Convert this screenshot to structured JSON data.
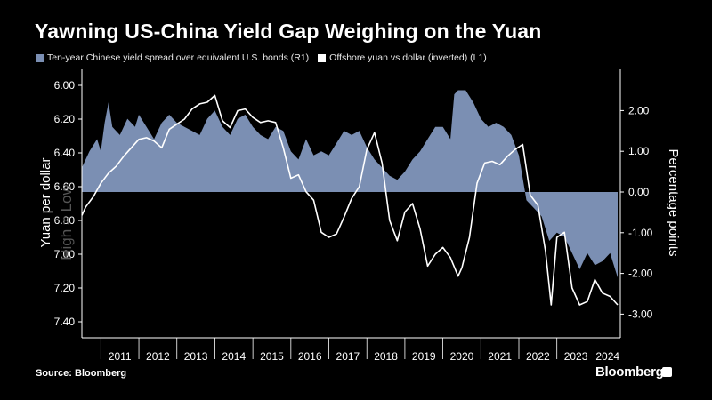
{
  "header": {
    "title": "Yawning US-China Yield Gap Weighing on the Yuan"
  },
  "legend": [
    {
      "label": "Ten-year Chinese yield spread over equivalent U.S. bonds (R1)",
      "color": "#7b8fb3"
    },
    {
      "label": "Offshore yuan vs dollar (inverted) (L1)",
      "color": "#ffffff"
    }
  ],
  "footer": {
    "source": "Source: Bloomberg",
    "brand": "Bloomberg"
  },
  "watermark": "High = Low",
  "chart_data": {
    "type": "area",
    "x_tick_labels": [
      "2011",
      "2012",
      "2013",
      "2014",
      "2015",
      "2016",
      "2017",
      "2018",
      "2019",
      "2020",
      "2021",
      "2022",
      "2023",
      "2024"
    ],
    "left_axis": {
      "label": "Yuan per dollar",
      "ylim": [
        7.4,
        6.0
      ],
      "inverted": true,
      "tick_labels": [
        "6.00",
        "6.20",
        "6.40",
        "6.60",
        "6.80",
        "7.00",
        "7.20",
        "7.40"
      ]
    },
    "right_axis": {
      "label": "Percentage points",
      "ylim": [
        -3.0,
        2.5
      ],
      "tick_labels": [
        "2.00",
        "1.00",
        "0.00",
        "-1.00",
        "-2.00",
        "-3.00"
      ]
    },
    "series": [
      {
        "name": "Ten-year Chinese yield spread over equivalent U.S. bonds (R1)",
        "axis": "right",
        "color": "#7b8fb3",
        "x": [
          2010.5,
          2010.7,
          2010.9,
          2011.0,
          2011.1,
          2011.2,
          2011.3,
          2011.5,
          2011.7,
          2011.9,
          2012.0,
          2012.2,
          2012.4,
          2012.6,
          2012.8,
          2013.0,
          2013.2,
          2013.4,
          2013.6,
          2013.8,
          2014.0,
          2014.2,
          2014.4,
          2014.6,
          2014.8,
          2015.0,
          2015.2,
          2015.4,
          2015.6,
          2015.8,
          2016.0,
          2016.2,
          2016.4,
          2016.6,
          2016.8,
          2017.0,
          2017.2,
          2017.4,
          2017.6,
          2017.8,
          2018.0,
          2018.2,
          2018.4,
          2018.6,
          2018.8,
          2019.0,
          2019.2,
          2019.4,
          2019.6,
          2019.8,
          2020.0,
          2020.2,
          2020.3,
          2020.4,
          2020.6,
          2020.8,
          2021.0,
          2021.2,
          2021.4,
          2021.6,
          2021.8,
          2022.0,
          2022.2,
          2022.4,
          2022.6,
          2022.8,
          2023.0,
          2023.2,
          2023.4,
          2023.6,
          2023.8,
          2024.0,
          2024.2,
          2024.4,
          2024.6
        ],
        "y": [
          0.6,
          1.0,
          1.3,
          1.0,
          1.7,
          2.2,
          1.6,
          1.4,
          1.8,
          1.6,
          1.9,
          1.6,
          1.3,
          1.7,
          1.9,
          1.7,
          1.6,
          1.5,
          1.4,
          1.8,
          2.0,
          1.6,
          1.4,
          1.8,
          1.9,
          1.6,
          1.4,
          1.3,
          1.6,
          1.5,
          1.0,
          0.8,
          1.3,
          0.9,
          1.0,
          0.9,
          1.2,
          1.5,
          1.4,
          1.5,
          1.1,
          0.8,
          0.6,
          0.4,
          0.3,
          0.5,
          0.8,
          1.0,
          1.3,
          1.6,
          1.6,
          1.3,
          2.4,
          2.5,
          2.5,
          2.2,
          1.8,
          1.6,
          1.7,
          1.6,
          1.4,
          0.9,
          -0.2,
          -0.4,
          -0.6,
          -1.2,
          -1.0,
          -1.1,
          -1.5,
          -1.9,
          -1.5,
          -1.8,
          -1.7,
          -1.5,
          -2.1
        ]
      },
      {
        "name": "Offshore yuan vs dollar (inverted) (L1)",
        "axis": "left",
        "color": "#ffffff",
        "x": [
          2010.5,
          2010.6,
          2010.8,
          2011.0,
          2011.2,
          2011.4,
          2011.6,
          2011.8,
          2012.0,
          2012.2,
          2012.4,
          2012.6,
          2012.8,
          2013.0,
          2013.2,
          2013.4,
          2013.6,
          2013.8,
          2014.0,
          2014.2,
          2014.4,
          2014.6,
          2014.8,
          2015.0,
          2015.2,
          2015.4,
          2015.6,
          2015.8,
          2016.0,
          2016.2,
          2016.4,
          2016.6,
          2016.8,
          2017.0,
          2017.2,
          2017.4,
          2017.6,
          2017.8,
          2018.0,
          2018.2,
          2018.4,
          2018.6,
          2018.8,
          2019.0,
          2019.2,
          2019.4,
          2019.6,
          2019.8,
          2020.0,
          2020.2,
          2020.4,
          2020.5,
          2020.7,
          2020.9,
          2021.1,
          2021.3,
          2021.5,
          2021.7,
          2021.9,
          2022.1,
          2022.3,
          2022.5,
          2022.7,
          2022.85,
          2023.0,
          2023.2,
          2023.4,
          2023.6,
          2023.8,
          2024.0,
          2024.2,
          2024.4,
          2024.6
        ],
        "y": [
          6.77,
          6.72,
          6.66,
          6.58,
          6.52,
          6.48,
          6.42,
          6.37,
          6.32,
          6.31,
          6.33,
          6.37,
          6.26,
          6.23,
          6.2,
          6.14,
          6.11,
          6.1,
          6.06,
          6.21,
          6.25,
          6.15,
          6.14,
          6.19,
          6.22,
          6.21,
          6.22,
          6.37,
          6.55,
          6.53,
          6.63,
          6.68,
          6.87,
          6.9,
          6.88,
          6.78,
          6.67,
          6.6,
          6.38,
          6.28,
          6.46,
          6.8,
          6.92,
          6.75,
          6.7,
          6.85,
          7.07,
          7.0,
          6.96,
          7.02,
          7.13,
          7.08,
          6.9,
          6.58,
          6.46,
          6.45,
          6.47,
          6.42,
          6.38,
          6.35,
          6.65,
          6.71,
          6.98,
          7.3,
          6.9,
          6.87,
          7.2,
          7.3,
          7.28,
          7.15,
          7.23,
          7.25,
          7.3
        ]
      }
    ],
    "zero_line": 0.0,
    "legend_position": "top-left"
  }
}
